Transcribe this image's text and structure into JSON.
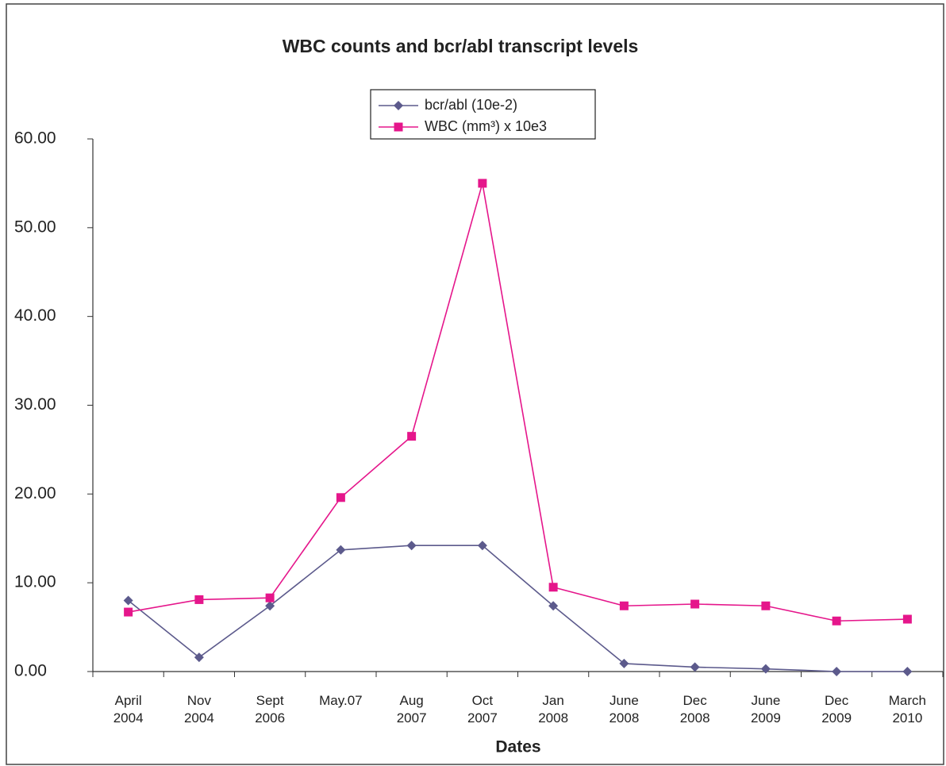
{
  "chart_data": {
    "type": "line",
    "title": "WBC counts and bcr/abl transcript levels",
    "x_label": "Dates",
    "categories": [
      "April 2004",
      "Nov 2004",
      "Sept 2006",
      "May.07",
      "Aug 2007",
      "Oct 2007",
      "Jan 2008",
      "June 2008",
      "Dec 2008",
      "June 2009",
      "Dec 2009",
      "March 2010"
    ],
    "series": [
      {
        "name": "bcr/abl (10e-2)",
        "color": "#5c5a8c",
        "marker": "diamond",
        "values": [
          8.0,
          1.6,
          7.4,
          13.7,
          14.2,
          14.2,
          7.4,
          0.9,
          0.5,
          0.3,
          0.0,
          0.0
        ]
      },
      {
        "name": "WBC (mm³) x 10e3",
        "color": "#e5168b",
        "marker": "square",
        "values": [
          6.7,
          8.1,
          8.3,
          19.6,
          26.5,
          55.0,
          9.5,
          7.4,
          7.6,
          7.4,
          5.7,
          5.9
        ]
      }
    ],
    "ylim": [
      0,
      60
    ],
    "yticks": [
      {
        "value": 0,
        "label": "0.00"
      },
      {
        "value": 10,
        "label": "10.00"
      },
      {
        "value": 20,
        "label": "20.00"
      },
      {
        "value": 30,
        "label": "30.00"
      },
      {
        "value": 40,
        "label": "40.00"
      },
      {
        "value": 50,
        "label": "50.00"
      },
      {
        "value": 60,
        "label": "60.00"
      }
    ],
    "grid": false
  }
}
